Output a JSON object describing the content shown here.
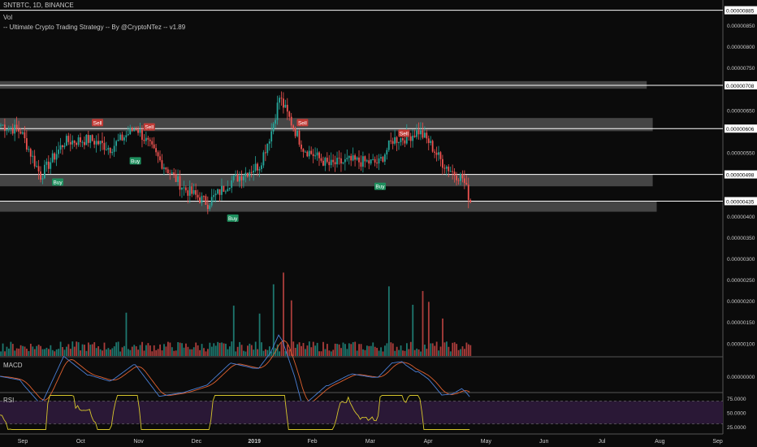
{
  "header": {
    "symbol": "SNTBTC, 1D, BINANCE",
    "vol_label": "Vol",
    "strategy_label": "-- Ultimate Crypto Trading Strategy -- By @CryptoNTez -- v1.89"
  },
  "panes": {
    "macd_label": "MACD",
    "rsi_label": "RSI"
  },
  "colors": {
    "background": "#0b0b0b",
    "up": "#26a69a",
    "down": "#ef5350",
    "zone": "#5a5a5a",
    "level_line": "#ffffff",
    "macd": "#4a7fd6",
    "signal": "#e0612f",
    "rsi": "#d7c62b",
    "rsi_band": "#2a1836",
    "buy": "#1e8f5e",
    "sell": "#c23b36"
  },
  "chart_data": {
    "type": "candlestick",
    "x_ticks": [
      "Sep",
      "Oct",
      "Nov",
      "Dec",
      "2019",
      "Feb",
      "Mar",
      "Apr",
      "May",
      "Jun",
      "Jul",
      "Aug",
      "Sep"
    ],
    "price_axis": {
      "ticks": [
        "0.00000850",
        "0.00000800",
        "0.00000750",
        "0.00000700",
        "0.00000650",
        "0.00000600",
        "0.00000550",
        "0.00000500",
        "0.00000450",
        "0.00000400",
        "0.00000350",
        "0.00000300",
        "0.00000250",
        "0.00000200",
        "0.00000150",
        "0.00000100"
      ],
      "ylim": [
        7e-07,
        8.9e-06
      ]
    },
    "level_tags": [
      "0.00000885",
      "0.00000708",
      "0.00000606",
      "0.00000498",
      "0.00000435"
    ],
    "price_anchors": [
      {
        "day": 0,
        "close": 6.15e-06
      },
      {
        "day": 10,
        "close": 6e-06
      },
      {
        "day": 20,
        "close": 4.95e-06
      },
      {
        "day": 32,
        "close": 5.75e-06
      },
      {
        "day": 45,
        "close": 5.8e-06
      },
      {
        "day": 55,
        "close": 5.6e-06
      },
      {
        "day": 68,
        "close": 6.1e-06
      },
      {
        "day": 80,
        "close": 5.3e-06
      },
      {
        "day": 92,
        "close": 4.65e-06
      },
      {
        "day": 104,
        "close": 4.3e-06
      },
      {
        "day": 115,
        "close": 4.8e-06
      },
      {
        "day": 124,
        "close": 5.05e-06
      },
      {
        "day": 130,
        "close": 5.2e-06
      },
      {
        "day": 136,
        "close": 6e-06
      },
      {
        "day": 140,
        "close": 6.8e-06
      },
      {
        "day": 144,
        "close": 6.4e-06
      },
      {
        "day": 152,
        "close": 5.6e-06
      },
      {
        "day": 165,
        "close": 5.2e-06
      },
      {
        "day": 175,
        "close": 5.3e-06
      },
      {
        "day": 190,
        "close": 5.25e-06
      },
      {
        "day": 197,
        "close": 5.8e-06
      },
      {
        "day": 204,
        "close": 5.85e-06
      },
      {
        "day": 210,
        "close": 6e-06
      },
      {
        "day": 215,
        "close": 5.75e-06
      },
      {
        "day": 222,
        "close": 5.25e-06
      },
      {
        "day": 228,
        "close": 5e-06
      },
      {
        "day": 232,
        "close": 4.9e-06
      },
      {
        "day": 236,
        "close": 4.35e-06
      }
    ],
    "zones": [
      {
        "top": 7.18e-06,
        "bottom": 7e-06,
        "end_day": 325
      },
      {
        "top": 6.31e-06,
        "bottom": 6e-06,
        "end_day": 328
      },
      {
        "top": 4.99e-06,
        "bottom": 4.7e-06,
        "end_day": 328
      },
      {
        "top": 4.35e-06,
        "bottom": 4.1e-06,
        "end_day": 330
      }
    ],
    "signals": [
      {
        "label": "Buy",
        "day": 29,
        "price": 4.8e-06
      },
      {
        "label": "Sell",
        "day": 49,
        "price": 6.2e-06
      },
      {
        "label": "Buy",
        "day": 68,
        "price": 5.3e-06
      },
      {
        "label": "Sell",
        "day": 75,
        "price": 6.1e-06
      },
      {
        "label": "Buy",
        "day": 117,
        "price": 3.95e-06
      },
      {
        "label": "Sell",
        "day": 152,
        "price": 6.2e-06
      },
      {
        "label": "Buy",
        "day": 191,
        "price": 4.7e-06
      },
      {
        "label": "Sell",
        "day": 203,
        "price": 5.95e-06
      }
    ],
    "volume_spikes": [
      {
        "day": 63,
        "value": 1.48e-06
      },
      {
        "day": 117,
        "value": 1.72e-06
      },
      {
        "day": 130,
        "value": 1.45e-06
      },
      {
        "day": 137,
        "value": 2.45e-06
      },
      {
        "day": 142,
        "value": 2.85e-06
      },
      {
        "day": 146,
        "value": 1.9e-06
      },
      {
        "day": 195,
        "value": 2.38e-06
      },
      {
        "day": 207,
        "value": 1.75e-06
      },
      {
        "day": 212,
        "value": 2.22e-06
      },
      {
        "day": 215,
        "value": 1.85e-06
      },
      {
        "day": 222,
        "value": 1.28e-06
      }
    ],
    "macd_axis": {
      "ticks": [
        "0.00000000"
      ]
    },
    "rsi_axis": {
      "ticks": [
        "75.0000",
        "50.0000",
        "25.0000"
      ],
      "ylim": [
        15,
        85
      ],
      "bands": [
        70,
        30
      ]
    }
  }
}
